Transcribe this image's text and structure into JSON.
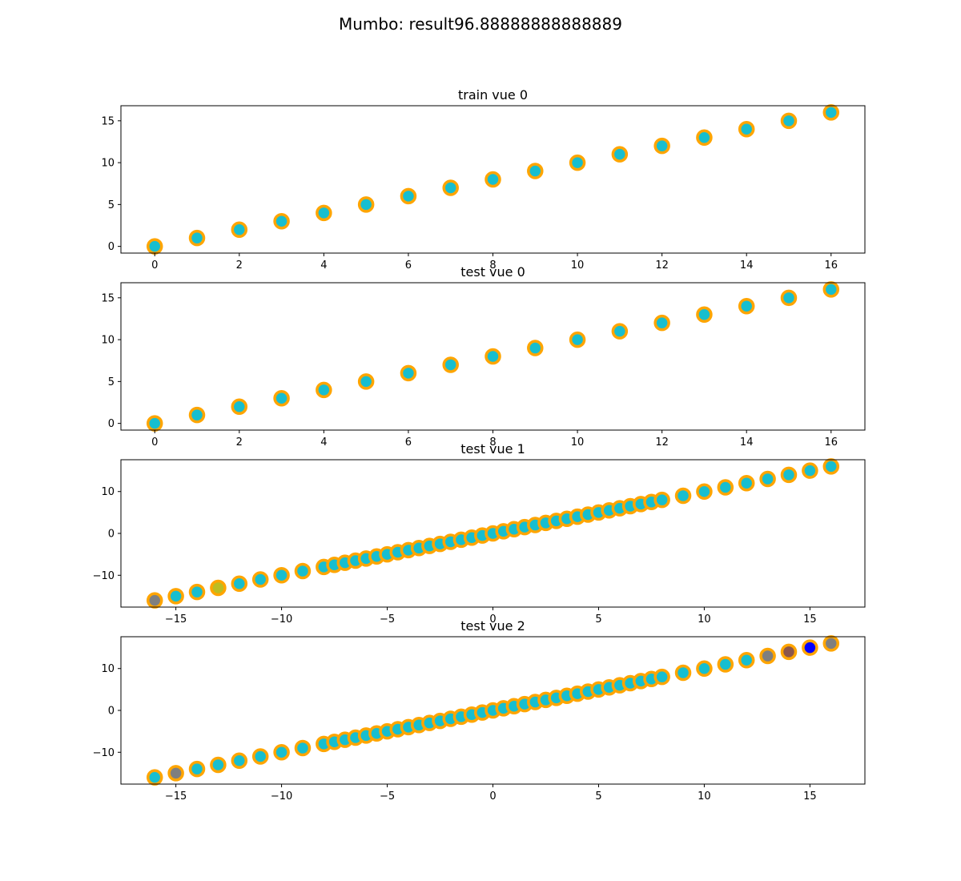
{
  "figure": {
    "title": "Mumbo: result96.88888888888889"
  },
  "colors": {
    "edge": "#ffa500",
    "default_face": "#17becf",
    "axis": "#000000",
    "background": "#ffffff"
  },
  "chart_data": [
    {
      "type": "scatter",
      "title": "train vue 0",
      "xlabel": "",
      "ylabel": "",
      "xlim": [
        -0.8,
        16.8
      ],
      "ylim": [
        -0.8,
        16.8
      ],
      "xticks": [
        0,
        2,
        4,
        6,
        8,
        10,
        12,
        14,
        16
      ],
      "yticks": [
        0,
        5,
        10,
        15
      ],
      "grid": false,
      "points": [
        {
          "x": 0,
          "y": 0
        },
        {
          "x": 1,
          "y": 1
        },
        {
          "x": 2,
          "y": 2
        },
        {
          "x": 3,
          "y": 3
        },
        {
          "x": 4,
          "y": 4
        },
        {
          "x": 5,
          "y": 5
        },
        {
          "x": 6,
          "y": 6
        },
        {
          "x": 7,
          "y": 7
        },
        {
          "x": 8,
          "y": 8
        },
        {
          "x": 9,
          "y": 9
        },
        {
          "x": 10,
          "y": 10
        },
        {
          "x": 11,
          "y": 11
        },
        {
          "x": 12,
          "y": 12
        },
        {
          "x": 13,
          "y": 13
        },
        {
          "x": 14,
          "y": 14
        },
        {
          "x": 15,
          "y": 15
        },
        {
          "x": 16,
          "y": 16
        }
      ]
    },
    {
      "type": "scatter",
      "title": "test vue 0",
      "xlabel": "",
      "ylabel": "",
      "xlim": [
        -0.8,
        16.8
      ],
      "ylim": [
        -0.8,
        16.8
      ],
      "xticks": [
        0,
        2,
        4,
        6,
        8,
        10,
        12,
        14,
        16
      ],
      "yticks": [
        0,
        5,
        10,
        15
      ],
      "grid": false,
      "points": [
        {
          "x": 0,
          "y": 0
        },
        {
          "x": 1,
          "y": 1
        },
        {
          "x": 2,
          "y": 2
        },
        {
          "x": 3,
          "y": 3
        },
        {
          "x": 4,
          "y": 4
        },
        {
          "x": 5,
          "y": 5
        },
        {
          "x": 6,
          "y": 6
        },
        {
          "x": 7,
          "y": 7
        },
        {
          "x": 8,
          "y": 8
        },
        {
          "x": 9,
          "y": 9
        },
        {
          "x": 10,
          "y": 10
        },
        {
          "x": 11,
          "y": 11
        },
        {
          "x": 12,
          "y": 12
        },
        {
          "x": 13,
          "y": 13
        },
        {
          "x": 14,
          "y": 14
        },
        {
          "x": 15,
          "y": 15
        },
        {
          "x": 16,
          "y": 16
        }
      ]
    },
    {
      "type": "scatter",
      "title": "test vue 1",
      "xlabel": "",
      "ylabel": "",
      "xlim": [
        -17.6,
        17.6
      ],
      "ylim": [
        -17.6,
        17.6
      ],
      "xticks": [
        -15,
        -10,
        -5,
        0,
        5,
        10,
        15
      ],
      "yticks": [
        -10,
        0,
        10
      ],
      "grid": false,
      "points": [
        {
          "x": -16,
          "y": -16,
          "face": "#7f7f7f"
        },
        {
          "x": -15,
          "y": -15
        },
        {
          "x": -14,
          "y": -14
        },
        {
          "x": -13,
          "y": -13,
          "face": "#bcbd22"
        },
        {
          "x": -12,
          "y": -12
        },
        {
          "x": -11,
          "y": -11
        },
        {
          "x": -10,
          "y": -10
        },
        {
          "x": -9,
          "y": -9
        },
        {
          "x": -8,
          "y": -8
        },
        {
          "x": -7.5,
          "y": -7.5
        },
        {
          "x": -7,
          "y": -7
        },
        {
          "x": -6.5,
          "y": -6.5
        },
        {
          "x": -6,
          "y": -6
        },
        {
          "x": -5.5,
          "y": -5.5
        },
        {
          "x": -5,
          "y": -5
        },
        {
          "x": -4.5,
          "y": -4.5
        },
        {
          "x": -4,
          "y": -4
        },
        {
          "x": -3.5,
          "y": -3.5
        },
        {
          "x": -3,
          "y": -3
        },
        {
          "x": -2.5,
          "y": -2.5
        },
        {
          "x": -2,
          "y": -2
        },
        {
          "x": -1.5,
          "y": -1.5
        },
        {
          "x": -1,
          "y": -1
        },
        {
          "x": -0.5,
          "y": -0.5
        },
        {
          "x": 0,
          "y": 0
        },
        {
          "x": 0.5,
          "y": 0.5
        },
        {
          "x": 1,
          "y": 1
        },
        {
          "x": 1.5,
          "y": 1.5
        },
        {
          "x": 2,
          "y": 2
        },
        {
          "x": 2.5,
          "y": 2.5
        },
        {
          "x": 3,
          "y": 3
        },
        {
          "x": 3.5,
          "y": 3.5
        },
        {
          "x": 4,
          "y": 4
        },
        {
          "x": 4.5,
          "y": 4.5
        },
        {
          "x": 5,
          "y": 5
        },
        {
          "x": 5.5,
          "y": 5.5
        },
        {
          "x": 6,
          "y": 6
        },
        {
          "x": 6.5,
          "y": 6.5
        },
        {
          "x": 7,
          "y": 7
        },
        {
          "x": 7.5,
          "y": 7.5
        },
        {
          "x": 8,
          "y": 8
        },
        {
          "x": 9,
          "y": 9
        },
        {
          "x": 10,
          "y": 10
        },
        {
          "x": 11,
          "y": 11
        },
        {
          "x": 12,
          "y": 12
        },
        {
          "x": 13,
          "y": 13
        },
        {
          "x": 14,
          "y": 14
        },
        {
          "x": 15,
          "y": 15
        },
        {
          "x": 16,
          "y": 16
        }
      ]
    },
    {
      "type": "scatter",
      "title": "test vue 2",
      "xlabel": "",
      "ylabel": "",
      "xlim": [
        -17.6,
        17.6
      ],
      "ylim": [
        -17.6,
        17.6
      ],
      "xticks": [
        -15,
        -10,
        -5,
        0,
        5,
        10,
        15
      ],
      "yticks": [
        -10,
        0,
        10
      ],
      "grid": false,
      "points": [
        {
          "x": -16,
          "y": -16
        },
        {
          "x": -15,
          "y": -15,
          "face": "#7f7f7f"
        },
        {
          "x": -14,
          "y": -14
        },
        {
          "x": -13,
          "y": -13
        },
        {
          "x": -12,
          "y": -12
        },
        {
          "x": -11,
          "y": -11
        },
        {
          "x": -10,
          "y": -10
        },
        {
          "x": -9,
          "y": -9
        },
        {
          "x": -8,
          "y": -8
        },
        {
          "x": -7.5,
          "y": -7.5
        },
        {
          "x": -7,
          "y": -7
        },
        {
          "x": -6.5,
          "y": -6.5
        },
        {
          "x": -6,
          "y": -6
        },
        {
          "x": -5.5,
          "y": -5.5
        },
        {
          "x": -5,
          "y": -5
        },
        {
          "x": -4.5,
          "y": -4.5
        },
        {
          "x": -4,
          "y": -4
        },
        {
          "x": -3.5,
          "y": -3.5
        },
        {
          "x": -3,
          "y": -3
        },
        {
          "x": -2.5,
          "y": -2.5
        },
        {
          "x": -2,
          "y": -2
        },
        {
          "x": -1.5,
          "y": -1.5
        },
        {
          "x": -1,
          "y": -1
        },
        {
          "x": -0.5,
          "y": -0.5
        },
        {
          "x": 0,
          "y": 0
        },
        {
          "x": 0.5,
          "y": 0.5
        },
        {
          "x": 1,
          "y": 1
        },
        {
          "x": 1.5,
          "y": 1.5
        },
        {
          "x": 2,
          "y": 2
        },
        {
          "x": 2.5,
          "y": 2.5
        },
        {
          "x": 3,
          "y": 3
        },
        {
          "x": 3.5,
          "y": 3.5
        },
        {
          "x": 4,
          "y": 4
        },
        {
          "x": 4.5,
          "y": 4.5
        },
        {
          "x": 5,
          "y": 5
        },
        {
          "x": 5.5,
          "y": 5.5
        },
        {
          "x": 6,
          "y": 6
        },
        {
          "x": 6.5,
          "y": 6.5
        },
        {
          "x": 7,
          "y": 7
        },
        {
          "x": 7.5,
          "y": 7.5
        },
        {
          "x": 8,
          "y": 8
        },
        {
          "x": 9,
          "y": 9
        },
        {
          "x": 10,
          "y": 10
        },
        {
          "x": 11,
          "y": 11
        },
        {
          "x": 12,
          "y": 12
        },
        {
          "x": 13,
          "y": 13,
          "face": "#7f7f7f"
        },
        {
          "x": 14,
          "y": 14,
          "face": "#8c564b"
        },
        {
          "x": 15,
          "y": 15,
          "face": "#0000ff"
        },
        {
          "x": 16,
          "y": 16,
          "face": "#7f7f7f"
        }
      ]
    }
  ]
}
